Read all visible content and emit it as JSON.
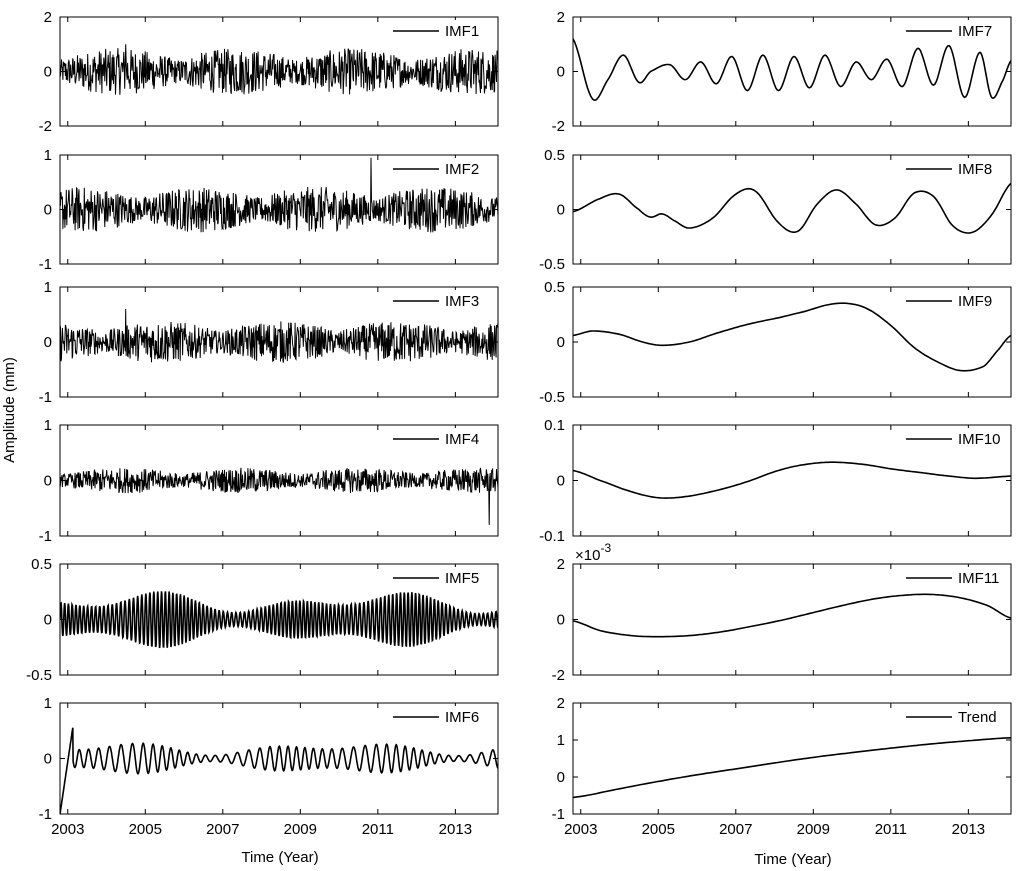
{
  "figure": {
    "ylabel": "Amplitude (mm)",
    "xlabel_left": "Time (Year)",
    "xlabel_right": "Time (Year)",
    "x_tick_labels": [
      "2003",
      "2005",
      "2007",
      "2009",
      "2011",
      "2013"
    ]
  },
  "chart_data": [
    {
      "type": "line",
      "series": [
        {
          "name": "IMF1"
        }
      ],
      "ylim": [
        -2,
        2
      ],
      "yticks": [
        "-2",
        "0",
        "2"
      ],
      "xlim": [
        2002.8,
        2014.1
      ],
      "signal": "noise",
      "amplitude": 0.45,
      "spike": 1.0
    },
    {
      "type": "line",
      "series": [
        {
          "name": "IMF2"
        }
      ],
      "ylim": [
        -1,
        1
      ],
      "yticks": [
        "-1",
        "0",
        "1"
      ],
      "xlim": [
        2002.8,
        2014.1
      ],
      "signal": "noise",
      "amplitude": 0.22,
      "spike": 0.95
    },
    {
      "type": "line",
      "series": [
        {
          "name": "IMF3"
        }
      ],
      "ylim": [
        -1,
        1
      ],
      "yticks": [
        "-1",
        "0",
        "1"
      ],
      "xlim": [
        2002.8,
        2014.1
      ],
      "signal": "noise",
      "amplitude": 0.2,
      "spike": 0.6
    },
    {
      "type": "line",
      "series": [
        {
          "name": "IMF4"
        }
      ],
      "ylim": [
        -1,
        1
      ],
      "yticks": [
        "-1",
        "0",
        "1"
      ],
      "xlim": [
        2002.8,
        2014.1
      ],
      "signal": "noise",
      "amplitude": 0.12,
      "spike": -0.8
    },
    {
      "type": "line",
      "series": [
        {
          "name": "IMF5"
        }
      ],
      "ylim": [
        -0.5,
        0.5
      ],
      "yticks": [
        "-0.5",
        "0",
        "0.5"
      ],
      "xlim": [
        2002.8,
        2014.1
      ],
      "signal": "oscillation",
      "amplitude": 0.22,
      "cycles": 110
    },
    {
      "type": "line",
      "series": [
        {
          "name": "IMF6"
        }
      ],
      "ylim": [
        -1,
        1
      ],
      "yticks": [
        "-1",
        "0",
        "1"
      ],
      "xlim": [
        2002.8,
        2014.1
      ],
      "signal": "oscillation",
      "amplitude": 0.25,
      "cycles": 45
    },
    {
      "type": "line",
      "series": [
        {
          "name": "IMF7"
        }
      ],
      "ylim": [
        -2,
        2
      ],
      "yticks": [
        "-2",
        "0",
        "2"
      ],
      "xlim": [
        2002.8,
        2014.1
      ],
      "x": [
        2002.8,
        2003.3,
        2003.7,
        2004.1,
        2004.5,
        2004.8,
        2005.3,
        2005.7,
        2006.1,
        2006.5,
        2006.9,
        2007.3,
        2007.7,
        2008.1,
        2008.5,
        2008.9,
        2009.3,
        2009.7,
        2010.1,
        2010.5,
        2010.9,
        2011.3,
        2011.7,
        2012.1,
        2012.5,
        2012.9,
        2013.3,
        2013.6,
        2013.9,
        2014.1
      ],
      "values": [
        1.2,
        -1.0,
        -0.3,
        0.6,
        -0.4,
        0.0,
        0.25,
        -0.3,
        0.35,
        -0.45,
        0.55,
        -0.7,
        0.6,
        -0.7,
        0.55,
        -0.6,
        0.6,
        -0.55,
        0.35,
        -0.3,
        0.45,
        -0.55,
        0.85,
        -0.5,
        0.95,
        -0.95,
        0.7,
        -0.95,
        -0.3,
        0.4
      ]
    },
    {
      "type": "line",
      "series": [
        {
          "name": "IMF8"
        }
      ],
      "ylim": [
        -0.5,
        0.5
      ],
      "yticks": [
        "-0.5",
        "0",
        "0.5"
      ],
      "xlim": [
        2002.8,
        2014.1
      ],
      "x": [
        2002.8,
        2003.5,
        2004.0,
        2004.5,
        2004.8,
        2005.1,
        2005.4,
        2005.8,
        2006.4,
        2007.0,
        2007.5,
        2008.1,
        2008.6,
        2009.1,
        2009.6,
        2010.1,
        2010.6,
        2011.1,
        2011.6,
        2012.1,
        2012.6,
        2013.1,
        2013.6,
        2014.1
      ],
      "values": [
        -0.02,
        0.1,
        0.14,
        0.0,
        -0.07,
        -0.04,
        -0.1,
        -0.17,
        -0.08,
        0.14,
        0.17,
        -0.12,
        -0.2,
        0.05,
        0.18,
        0.05,
        -0.14,
        -0.08,
        0.15,
        0.12,
        -0.15,
        -0.21,
        -0.05,
        0.24
      ]
    },
    {
      "type": "line",
      "series": [
        {
          "name": "IMF9"
        }
      ],
      "ylim": [
        -0.5,
        0.5
      ],
      "yticks": [
        "-0.5",
        "0",
        "0.5"
      ],
      "xlim": [
        2002.8,
        2014.1
      ],
      "x": [
        2002.8,
        2003.3,
        2004.0,
        2004.6,
        2005.1,
        2005.8,
        2006.5,
        2007.3,
        2008.1,
        2008.8,
        2009.4,
        2009.9,
        2010.4,
        2011.0,
        2011.6,
        2012.2,
        2012.8,
        2013.4,
        2013.8,
        2014.1
      ],
      "values": [
        0.06,
        0.1,
        0.07,
        0.0,
        -0.03,
        0.0,
        0.08,
        0.16,
        0.22,
        0.28,
        0.34,
        0.35,
        0.3,
        0.15,
        -0.05,
        -0.18,
        -0.26,
        -0.22,
        -0.06,
        0.06
      ]
    },
    {
      "type": "line",
      "series": [
        {
          "name": "IMF10"
        }
      ],
      "ylim": [
        -0.1,
        0.1
      ],
      "yticks": [
        "-0.1",
        "0",
        "0.1"
      ],
      "xlim": [
        2002.8,
        2014.1
      ],
      "x": [
        2002.8,
        2003.5,
        2004.3,
        2005.0,
        2005.7,
        2006.5,
        2007.3,
        2008.1,
        2008.8,
        2009.5,
        2010.3,
        2011.0,
        2011.8,
        2012.5,
        2013.2,
        2014.1
      ],
      "values": [
        0.018,
        0.0,
        -0.02,
        -0.031,
        -0.029,
        -0.018,
        -0.002,
        0.018,
        0.029,
        0.033,
        0.029,
        0.021,
        0.014,
        0.008,
        0.004,
        0.008
      ]
    },
    {
      "type": "line",
      "series": [
        {
          "name": "IMF11"
        }
      ],
      "ylim": [
        -2,
        2
      ],
      "yticks": [
        "-2",
        "0",
        "2"
      ],
      "yscale_label": "×10^-3",
      "xlim": [
        2002.8,
        2014.1
      ],
      "x": [
        2002.8,
        2003.5,
        2004.3,
        2005.0,
        2005.8,
        2006.6,
        2007.4,
        2008.2,
        2009.0,
        2009.8,
        2010.6,
        2011.4,
        2012.1,
        2012.8,
        2013.5,
        2014.1
      ],
      "values": [
        -0.05,
        -0.4,
        -0.58,
        -0.62,
        -0.58,
        -0.45,
        -0.25,
        -0.02,
        0.25,
        0.52,
        0.75,
        0.88,
        0.9,
        0.78,
        0.5,
        0.05
      ]
    },
    {
      "type": "line",
      "series": [
        {
          "name": "Trend"
        }
      ],
      "ylim": [
        -1,
        2
      ],
      "yticks": [
        "-1",
        "0",
        "1",
        "2"
      ],
      "xlim": [
        2002.8,
        2014.1
      ],
      "x": [
        2002.8,
        2004.0,
        2005.0,
        2006.0,
        2007.0,
        2008.0,
        2009.0,
        2010.0,
        2011.0,
        2012.0,
        2013.0,
        2014.1
      ],
      "values": [
        -0.55,
        -0.32,
        -0.12,
        0.06,
        0.22,
        0.38,
        0.53,
        0.66,
        0.78,
        0.89,
        0.98,
        1.06
      ]
    }
  ]
}
